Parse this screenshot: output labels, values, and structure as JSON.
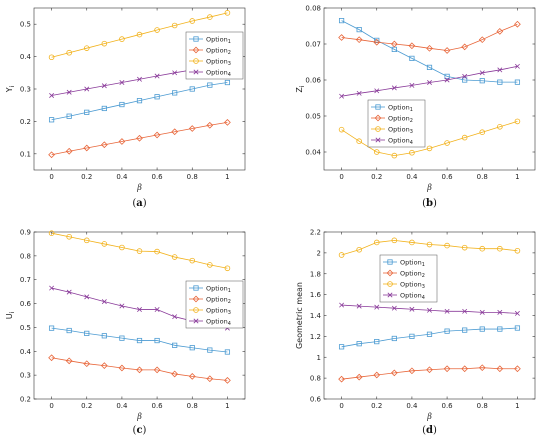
{
  "series_styles": [
    {
      "color": "#4c9bd2",
      "marker": "square"
    },
    {
      "color": "#e8663a",
      "marker": "diamond"
    },
    {
      "color": "#f2b21c",
      "marker": "circle"
    },
    {
      "color": "#8a3b9a",
      "marker": "x"
    }
  ],
  "chart_data": [
    {
      "type": "line",
      "caption": {
        "open": "(",
        "letter": "a",
        "close": ")"
      },
      "ylabel": {
        "base": "Y",
        "sub": "i"
      },
      "xlabel": "β",
      "xlim": [
        -0.1,
        1.1
      ],
      "ylim": [
        0.05,
        0.55
      ],
      "xticks": [
        0,
        0.2,
        0.4,
        0.6,
        0.8,
        1
      ],
      "xtick_labels": [
        "0",
        "0.2",
        "0.4",
        "0.6",
        "0.8",
        "1"
      ],
      "yticks": [
        0.1,
        0.2,
        0.3,
        0.4,
        0.5
      ],
      "ytick_labels": [
        "0.1",
        "0.2",
        "0.3",
        "0.4",
        "0.5"
      ],
      "legend": "top-right",
      "x": [
        0,
        0.1,
        0.2,
        0.3,
        0.4,
        0.5,
        0.6,
        0.7,
        0.8,
        0.9,
        1
      ],
      "series": [
        {
          "name": "Option",
          "sub": "1",
          "values": [
            0.205,
            0.216,
            0.228,
            0.24,
            0.252,
            0.264,
            0.276,
            0.288,
            0.3,
            0.312,
            0.32
          ]
        },
        {
          "name": "Option",
          "sub": "2",
          "values": [
            0.097,
            0.108,
            0.118,
            0.128,
            0.138,
            0.148,
            0.158,
            0.168,
            0.178,
            0.188,
            0.197
          ]
        },
        {
          "name": "Option",
          "sub": "3",
          "values": [
            0.398,
            0.412,
            0.426,
            0.44,
            0.454,
            0.468,
            0.482,
            0.496,
            0.51,
            0.522,
            0.535
          ]
        },
        {
          "name": "Option",
          "sub": "4",
          "values": [
            0.28,
            0.29,
            0.3,
            0.31,
            0.32,
            0.33,
            0.34,
            0.35,
            0.359,
            0.366,
            0.372
          ]
        }
      ]
    },
    {
      "type": "line",
      "caption": {
        "open": "(",
        "letter": "b",
        "close": ")"
      },
      "ylabel": {
        "base": "Z",
        "sub": "i"
      },
      "xlabel": "β",
      "xlim": [
        -0.1,
        1.1
      ],
      "ylim": [
        0.035,
        0.08
      ],
      "xticks": [
        0,
        0.2,
        0.4,
        0.6,
        0.8,
        1
      ],
      "xtick_labels": [
        "0",
        "0.2",
        "0.4",
        "0.6",
        "0.8",
        "1"
      ],
      "yticks": [
        0.04,
        0.05,
        0.06,
        0.07,
        0.08
      ],
      "ytick_labels": [
        "0.04",
        "0.05",
        "0.06",
        "0.07",
        "0.08"
      ],
      "legend": "bottom-right",
      "x": [
        0,
        0.1,
        0.2,
        0.3,
        0.4,
        0.5,
        0.6,
        0.7,
        0.8,
        0.9,
        1
      ],
      "series": [
        {
          "name": "Option",
          "sub": "1",
          "values": [
            0.0765,
            0.074,
            0.071,
            0.0685,
            0.066,
            0.0635,
            0.061,
            0.06,
            0.0598,
            0.0594,
            0.0594
          ]
        },
        {
          "name": "Option",
          "sub": "2",
          "values": [
            0.0718,
            0.0712,
            0.0705,
            0.07,
            0.0695,
            0.0688,
            0.0682,
            0.0692,
            0.0712,
            0.0735,
            0.0755
          ]
        },
        {
          "name": "Option",
          "sub": "3",
          "values": [
            0.0462,
            0.043,
            0.04,
            0.039,
            0.0398,
            0.041,
            0.0425,
            0.044,
            0.0455,
            0.047,
            0.0485
          ]
        },
        {
          "name": "Option",
          "sub": "4",
          "values": [
            0.0555,
            0.0563,
            0.057,
            0.0578,
            0.0585,
            0.0593,
            0.06,
            0.061,
            0.062,
            0.0628,
            0.0638
          ]
        }
      ]
    },
    {
      "type": "line",
      "caption": {
        "open": "(",
        "letter": "c",
        "close": ")"
      },
      "ylabel": {
        "base": "U",
        "sub": "i"
      },
      "xlabel": "β",
      "xlim": [
        -0.1,
        1.1
      ],
      "ylim": [
        0.2,
        0.9
      ],
      "xticks": [
        0,
        0.2,
        0.4,
        0.6,
        0.8,
        1
      ],
      "xtick_labels": [
        "0",
        "0.2",
        "0.4",
        "0.6",
        "0.8",
        "1"
      ],
      "yticks": [
        0.2,
        0.3,
        0.4,
        0.5,
        0.6,
        0.7,
        0.8,
        0.9
      ],
      "ytick_labels": [
        "0.2",
        "0.3",
        "0.4",
        "0.5",
        "0.6",
        "0.7",
        "0.8",
        "0.9"
      ],
      "legend": "right",
      "x": [
        0,
        0.1,
        0.2,
        0.3,
        0.4,
        0.5,
        0.6,
        0.7,
        0.8,
        0.9,
        1
      ],
      "series": [
        {
          "name": "Option",
          "sub": "1",
          "values": [
            0.497,
            0.487,
            0.475,
            0.465,
            0.455,
            0.445,
            0.445,
            0.425,
            0.415,
            0.405,
            0.397
          ]
        },
        {
          "name": "Option",
          "sub": "2",
          "values": [
            0.373,
            0.36,
            0.348,
            0.34,
            0.33,
            0.322,
            0.322,
            0.305,
            0.295,
            0.285,
            0.278
          ]
        },
        {
          "name": "Option",
          "sub": "3",
          "values": [
            0.895,
            0.88,
            0.865,
            0.85,
            0.835,
            0.82,
            0.818,
            0.795,
            0.78,
            0.762,
            0.748
          ]
        },
        {
          "name": "Option",
          "sub": "4",
          "values": [
            0.665,
            0.648,
            0.628,
            0.608,
            0.59,
            0.575,
            0.575,
            0.545,
            0.527,
            0.512,
            0.497
          ]
        }
      ]
    },
    {
      "type": "line",
      "caption": {
        "open": "(",
        "letter": "d",
        "close": ")"
      },
      "ylabel": {
        "base": "Geometric mean",
        "sub": ""
      },
      "xlabel": "β",
      "xlim": [
        -0.1,
        1.1
      ],
      "ylim": [
        0.6,
        2.2
      ],
      "xticks": [
        0,
        0.2,
        0.4,
        0.6,
        0.8,
        1
      ],
      "xtick_labels": [
        "0",
        "0.2",
        "0.4",
        "0.6",
        "0.8",
        "1"
      ],
      "yticks": [
        0.6,
        0.8,
        1,
        1.2,
        1.4,
        1.6,
        1.8,
        2,
        2.2
      ],
      "ytick_labels": [
        "0.6",
        "0.8",
        "1",
        "1.2",
        "1.4",
        "1.6",
        "1.8",
        "2",
        "2.2"
      ],
      "legend": "upper-middle",
      "x": [
        0,
        0.1,
        0.2,
        0.3,
        0.4,
        0.5,
        0.6,
        0.7,
        0.8,
        0.9,
        1
      ],
      "series": [
        {
          "name": "Option",
          "sub": "1",
          "values": [
            1.1,
            1.13,
            1.15,
            1.18,
            1.2,
            1.22,
            1.25,
            1.26,
            1.27,
            1.27,
            1.28
          ]
        },
        {
          "name": "Option",
          "sub": "2",
          "values": [
            0.79,
            0.81,
            0.83,
            0.85,
            0.87,
            0.88,
            0.89,
            0.89,
            0.9,
            0.89,
            0.89
          ]
        },
        {
          "name": "Option",
          "sub": "3",
          "values": [
            1.98,
            2.03,
            2.1,
            2.12,
            2.1,
            2.08,
            2.07,
            2.05,
            2.04,
            2.04,
            2.02
          ]
        },
        {
          "name": "Option",
          "sub": "4",
          "values": [
            1.5,
            1.49,
            1.48,
            1.47,
            1.46,
            1.45,
            1.44,
            1.44,
            1.43,
            1.43,
            1.42
          ]
        }
      ]
    }
  ]
}
